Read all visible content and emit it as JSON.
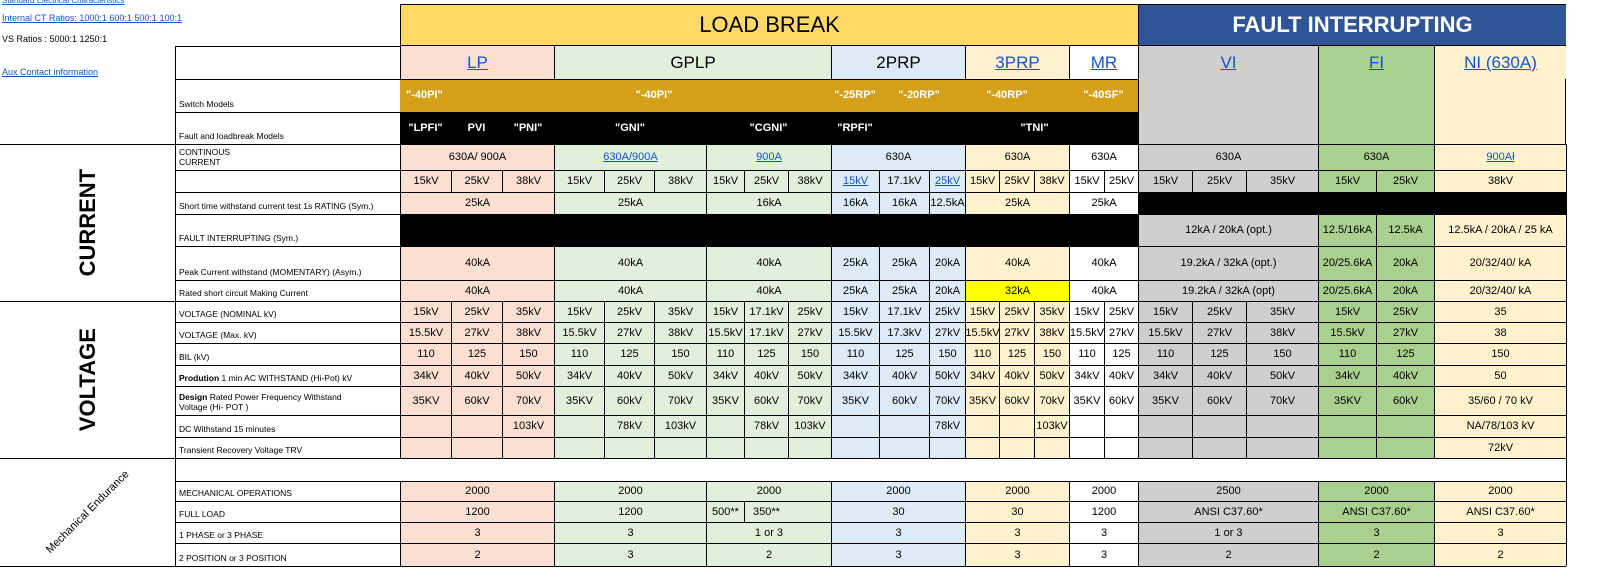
{
  "top_left": {
    "standard_link": "Standard Electrical Characteristics",
    "ct_ratios_link": "Internal CT Ratios: 1000:1 600:1 500:1 100:1",
    "vs_ratios": "VS Ratios : 5000:1   1250:1",
    "aux_link": "Aux Contact information"
  },
  "labels": {
    "switch_models": "Switch Models",
    "fault_models": "Fault  and loadbreak Models"
  },
  "headers": {
    "load_break": "LOAD BREAK",
    "fault_interrupting": "FAULT INTERRUPTING"
  },
  "products": [
    "LP",
    "GPLP",
    "2PRP",
    "3PRP",
    "MR",
    "VI",
    "FI",
    "NI (630A)"
  ],
  "switch_model_codes": [
    "\"-40PI\"",
    "\"-40PI\"",
    "\"-25RP\"",
    "\"-20RP\"",
    "\"-40RP\"",
    "\"-40SF\""
  ],
  "fault_model_codes": [
    "\"LPFI\"",
    "PVI",
    "\"PNI\"",
    "\"GNI\"",
    "\"CGNI\"",
    "\"RPFI\"",
    "\"TNI\""
  ],
  "sections": {
    "current": "CURRENT",
    "voltage": "VOLTAGE",
    "mechanical": "Mechanical Endurance"
  },
  "rows": {
    "continuous_current": {
      "label": "CONTINOUS CURRENT",
      "values": [
        "630A/ 900A",
        "630A/900A",
        "900A",
        "630A",
        "630A",
        "630A",
        "630A",
        "630A",
        "900Ał"
      ]
    },
    "kv_class": [
      "15kV",
      "25kV",
      "38kV",
      "15kV",
      "25kV",
      "38kV",
      "15kV",
      "25kV",
      "38kV",
      "15kV",
      "17.1kV",
      "25kV",
      "15kV",
      "25kV",
      "38kV",
      "15kV",
      "25kV",
      "15kV",
      "25kV",
      "35kV",
      "15kV",
      "25kV",
      "38kV"
    ],
    "short_time": {
      "label": "Short time withstand current test  1s RATING  (Sym.)",
      "values": [
        "25kA",
        "25kA",
        "16kA",
        "16kA",
        "16kA",
        "12.5kA",
        "25kA",
        "25kA"
      ]
    },
    "fault_interrupting": {
      "label": "FAULT INTERRUPTING (Sym.)",
      "values": [
        "12kA / 20kA (opt.)",
        "12.5/16kA",
        "12.5kA",
        "12.5kA / 20kA / 25 kA"
      ]
    },
    "peak_current": {
      "label": "Peak Current withstand (MOMENTARY) (Asym.)",
      "values": [
        "40kA",
        "40kA",
        "40kA",
        "25kA",
        "25kA",
        "20kA",
        "40kA",
        "40kA",
        "19.2kA / 32kA (opt.)",
        "20/25.6kA",
        "20kA",
        "20/32/40/ kA"
      ]
    },
    "making_current": {
      "label": "Rated short circuit Making Current",
      "values": [
        "40kA",
        "40kA",
        "40kA",
        "25kA",
        "25kA",
        "20kA",
        "32kA",
        "40kA",
        "19.2kA / 32kA (opt)",
        "20/25.6kA",
        "20kA",
        "20/32/40/ kA"
      ]
    },
    "voltage_nominal": {
      "label": "VOLTAGE (NOMINAL kV)",
      "values": [
        "15kV",
        "25kV",
        "35kV",
        "15kV",
        "25kV",
        "35kV",
        "15kV",
        "17.1kV",
        "25kV",
        "15kV",
        "17.1kV",
        "25kV",
        "15kV",
        "25kV",
        "35kV",
        "15kV",
        "25kV",
        "15kV",
        "25kV",
        "35kV",
        "15kV",
        "25kV",
        "35"
      ]
    },
    "voltage_max": {
      "label": "VOLTAGE (Max. kV)",
      "values": [
        "15.5kV",
        "27kV",
        "38kV",
        "15.5kV",
        "27kV",
        "38kV",
        "15.5kV",
        "17.1kV",
        "27kV",
        "15.5kV",
        "17.3kV",
        "27kV",
        "15.5kV",
        "27kV",
        "38kV",
        "15.5kV",
        "27kV",
        "15.5kV",
        "27kV",
        "38kV",
        "15.5kV",
        "27kV",
        "38"
      ]
    },
    "bil": {
      "label": "BIL (kV)",
      "values": [
        "110",
        "125",
        "150",
        "110",
        "125",
        "150",
        "110",
        "125",
        "150",
        "110",
        "125",
        "150",
        "110",
        "125",
        "150",
        "110",
        "125",
        "110",
        "125",
        "150",
        "110",
        "125",
        "150"
      ]
    },
    "production_ac": {
      "label_bold": "Prodution",
      "label_rest": " 1 min AC WITHSTAND (Hi-Pot) kV",
      "values": [
        "34kV",
        "40kV",
        "50kV",
        "34kV",
        "40kV",
        "50kV",
        "34kV",
        "40kV",
        "50kV",
        "34kV",
        "40kV",
        "50kV",
        "34kV",
        "40kV",
        "50kV",
        "34kV",
        "40kV",
        "34kV",
        "40kV",
        "50kV",
        "34kV",
        "40kV",
        "50"
      ]
    },
    "design_ac": {
      "label_bold": "Design",
      "label_rest": " Rated Power Frequency Withstand Voltage (Hi- POT )",
      "values": [
        "35KV",
        "60kV",
        "70kV",
        "35KV",
        "60kV",
        "70kV",
        "35KV",
        "60kV",
        "70kV",
        "35KV",
        "60kV",
        "70kV",
        "35KV",
        "60kV",
        "70kV",
        "35KV",
        "60kV",
        "35KV",
        "60kV",
        "70kV",
        "35KV",
        "60kV",
        "35/60 / 70 kV"
      ]
    },
    "dc_withstand": {
      "label": "DC Withstand 15 minutes",
      "values": [
        "103kV",
        "78kV",
        "103kV",
        "78kV",
        "103kV",
        "78kV",
        "103kV",
        "NA/78/103 kV"
      ]
    },
    "trv": {
      "label": "Transient Recovery Voltage TRV",
      "values": [
        "72kV"
      ]
    },
    "mech_ops": {
      "label": "MECHANICAL OPERATIONS",
      "values": [
        "2000",
        "2000",
        "2000",
        "2000",
        "2000",
        "2000",
        "2500",
        "2000",
        "2000"
      ]
    },
    "full_load": {
      "label": "FULL LOAD",
      "values": [
        "1200",
        "1200",
        "500**",
        "350**",
        "30",
        "30",
        "1200",
        "ANSI C37.60*",
        "ANSI C37.60*",
        "ANSI C37.60*"
      ]
    },
    "phase": {
      "label": "1 PHASE or 3 PHASE",
      "values": [
        "3",
        "3",
        "1 or 3",
        "3",
        "3",
        "3",
        "1 or 3",
        "3",
        "3"
      ]
    },
    "position": {
      "label": "2 POSITION or 3 POSITION",
      "values": [
        "2",
        "3",
        "2",
        "3",
        "3",
        "3",
        "2",
        "2",
        "2"
      ]
    }
  },
  "colors": {
    "load_break_header": "#ffd966",
    "fault_header": "#2f5597",
    "model_bar": "#d4a017",
    "lp": "#fbe0d2",
    "gplp": "#e2efda",
    "prp2": "#ddebf7",
    "prp3": "#fff2cc",
    "mr": "#ffffff",
    "vi": "#d0cece",
    "fi": "#a9d08e",
    "ni": "#fff2cc",
    "highlight": "#ffff00"
  }
}
